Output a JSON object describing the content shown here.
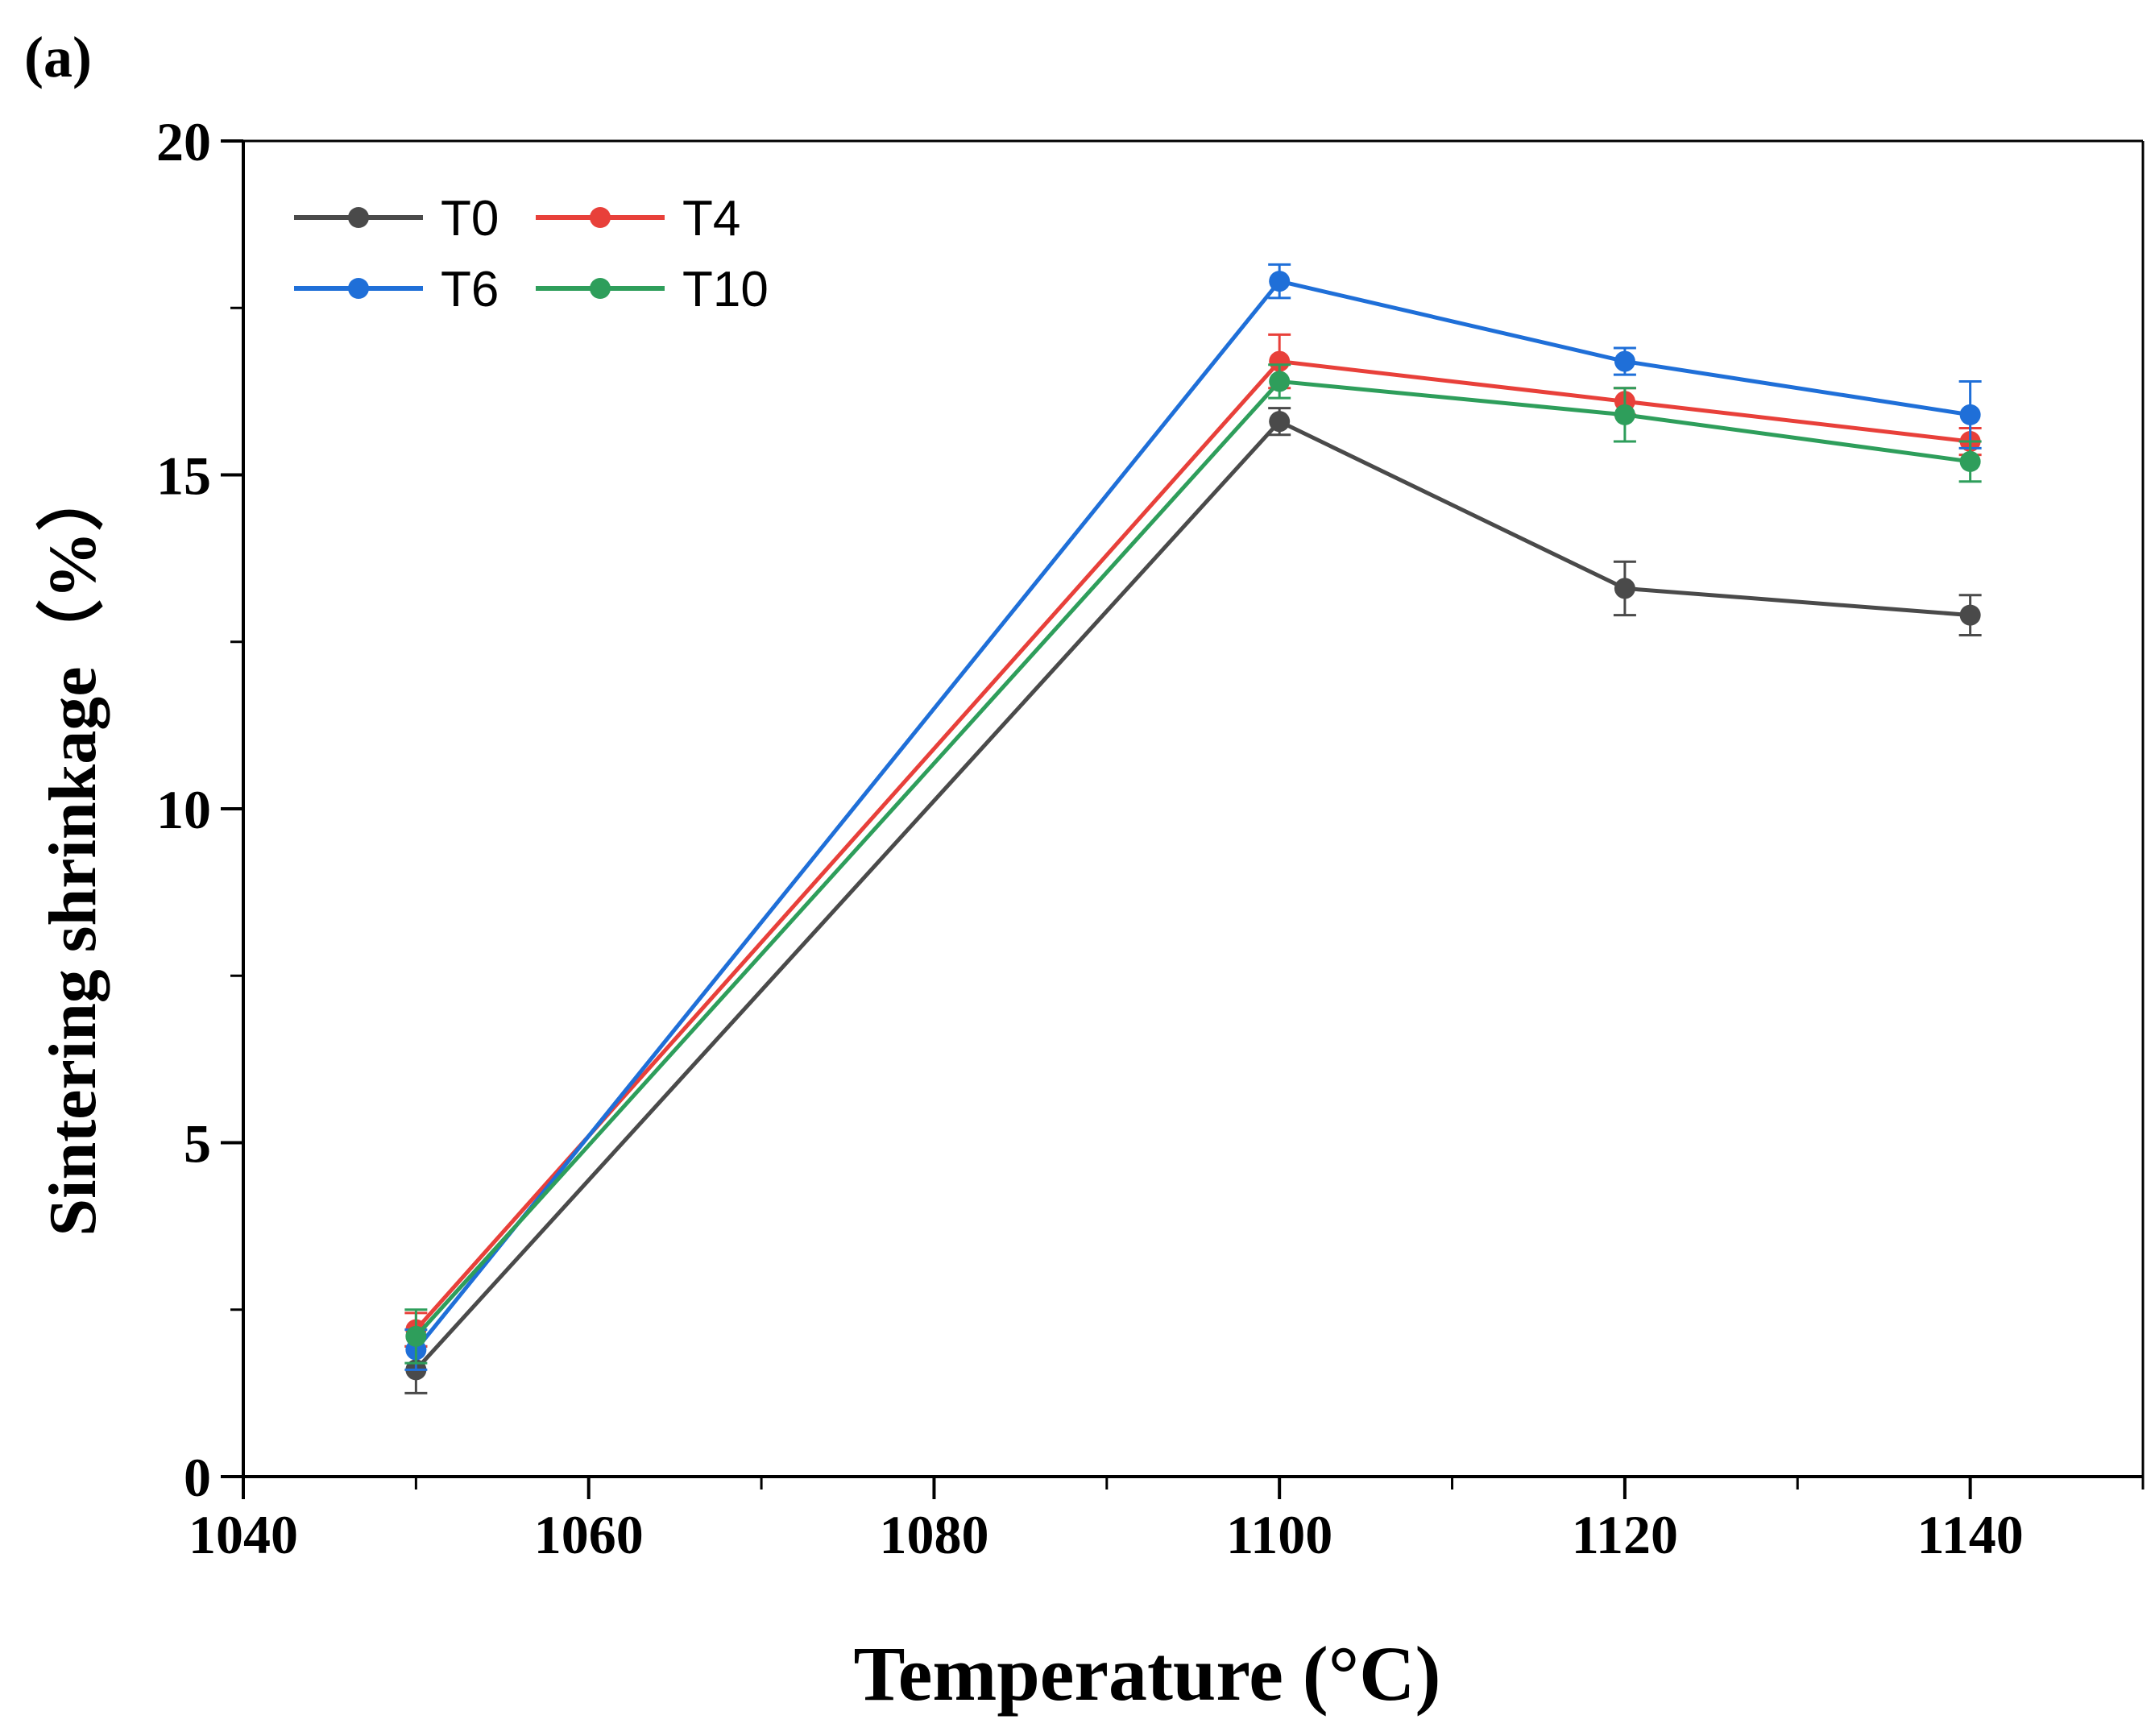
{
  "chart_data": {
    "type": "line",
    "panel_label": "(a)",
    "xlabel": "Temperature (°C)",
    "ylabel": "Sintering shrinkage（%）",
    "xlim": [
      1040,
      1150
    ],
    "ylim": [
      0,
      20
    ],
    "x_ticks": [
      1040,
      1060,
      1080,
      1100,
      1120,
      1140
    ],
    "x_tick_labels": [
      "1040",
      "1060",
      "1080",
      "1100",
      "1120",
      "1140"
    ],
    "x_minor_ticks": [
      1050,
      1070,
      1090,
      1110,
      1130,
      1150
    ],
    "y_ticks": [
      0,
      5,
      10,
      15,
      20
    ],
    "y_tick_labels": [
      "0",
      "5",
      "10",
      "15",
      "20"
    ],
    "y_minor_ticks": [
      2.5,
      7.5,
      12.5,
      17.5
    ],
    "grid": false,
    "legend": {
      "position": "top-left",
      "columns": 2
    },
    "x": [
      1050,
      1100,
      1120,
      1140
    ],
    "series": [
      {
        "name": "T0",
        "color": "#4a4a4a",
        "values": [
          1.6,
          15.8,
          13.3,
          12.9
        ],
        "errors": [
          0.35,
          0.2,
          0.4,
          0.3
        ]
      },
      {
        "name": "T4",
        "color": "#e8403a",
        "values": [
          2.2,
          16.7,
          16.1,
          15.5
        ],
        "errors": [
          0.25,
          0.4,
          0.2,
          0.2
        ]
      },
      {
        "name": "T6",
        "color": "#1f6fd8",
        "values": [
          1.9,
          17.9,
          16.7,
          15.9
        ],
        "errors": [
          0.3,
          0.25,
          0.2,
          0.5
        ]
      },
      {
        "name": "T10",
        "color": "#2e9e5b",
        "values": [
          2.1,
          16.4,
          15.9,
          15.2
        ],
        "errors": [
          0.4,
          0.25,
          0.4,
          0.3
        ]
      }
    ]
  }
}
